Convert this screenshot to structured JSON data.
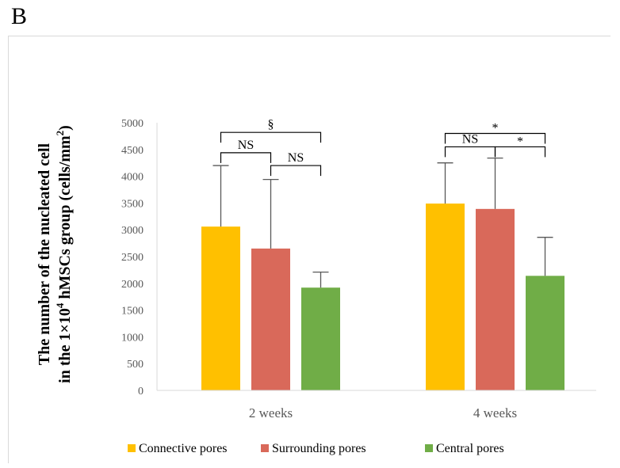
{
  "panel_label": "B",
  "chart_data": {
    "type": "bar",
    "title": "",
    "ylabel_line1": "The number of the nucleated cell",
    "ylabel_line2_pre": "in the 1×10",
    "ylabel_line2_sup": "4",
    "ylabel_line2_mid": " hMSCs group (cells/mm",
    "ylabel_line2_sup2": "2",
    "ylabel_line2_post": ")",
    "xlabel": "",
    "ylim": [
      0,
      5000
    ],
    "yticks": [
      0,
      500,
      1000,
      1500,
      2000,
      2500,
      3000,
      3500,
      4000,
      4500,
      5000
    ],
    "categories": [
      "2 weeks",
      "4 weeks"
    ],
    "series": [
      {
        "name": "Connective pores",
        "color": "#FFC000",
        "values": [
          3060,
          3490
        ],
        "errors": [
          1140,
          760
        ]
      },
      {
        "name": "Surrounding pores",
        "color": "#D9695A",
        "values": [
          2650,
          3390
        ],
        "errors": [
          1290,
          950
        ]
      },
      {
        "name": "Central pores",
        "color": "#70AD47",
        "values": [
          1920,
          2140
        ],
        "errors": [
          290,
          720
        ]
      }
    ],
    "legend_position": "bottom",
    "grid": false,
    "significance": [
      {
        "category": 0,
        "from": 0,
        "to": 2,
        "label": "§",
        "level": 4820
      },
      {
        "category": 0,
        "from": 0,
        "to": 1,
        "label": "NS",
        "level": 4440
      },
      {
        "category": 0,
        "from": 1,
        "to": 2,
        "label": "NS",
        "level": 4200
      },
      {
        "category": 1,
        "from": 0,
        "to": 2,
        "label": "*",
        "level": 4800
      },
      {
        "category": 1,
        "from": 0,
        "to": 1,
        "label": "NS",
        "level": 4550
      },
      {
        "category": 1,
        "from": 1,
        "to": 2,
        "label": "*",
        "level": 4550
      }
    ]
  }
}
